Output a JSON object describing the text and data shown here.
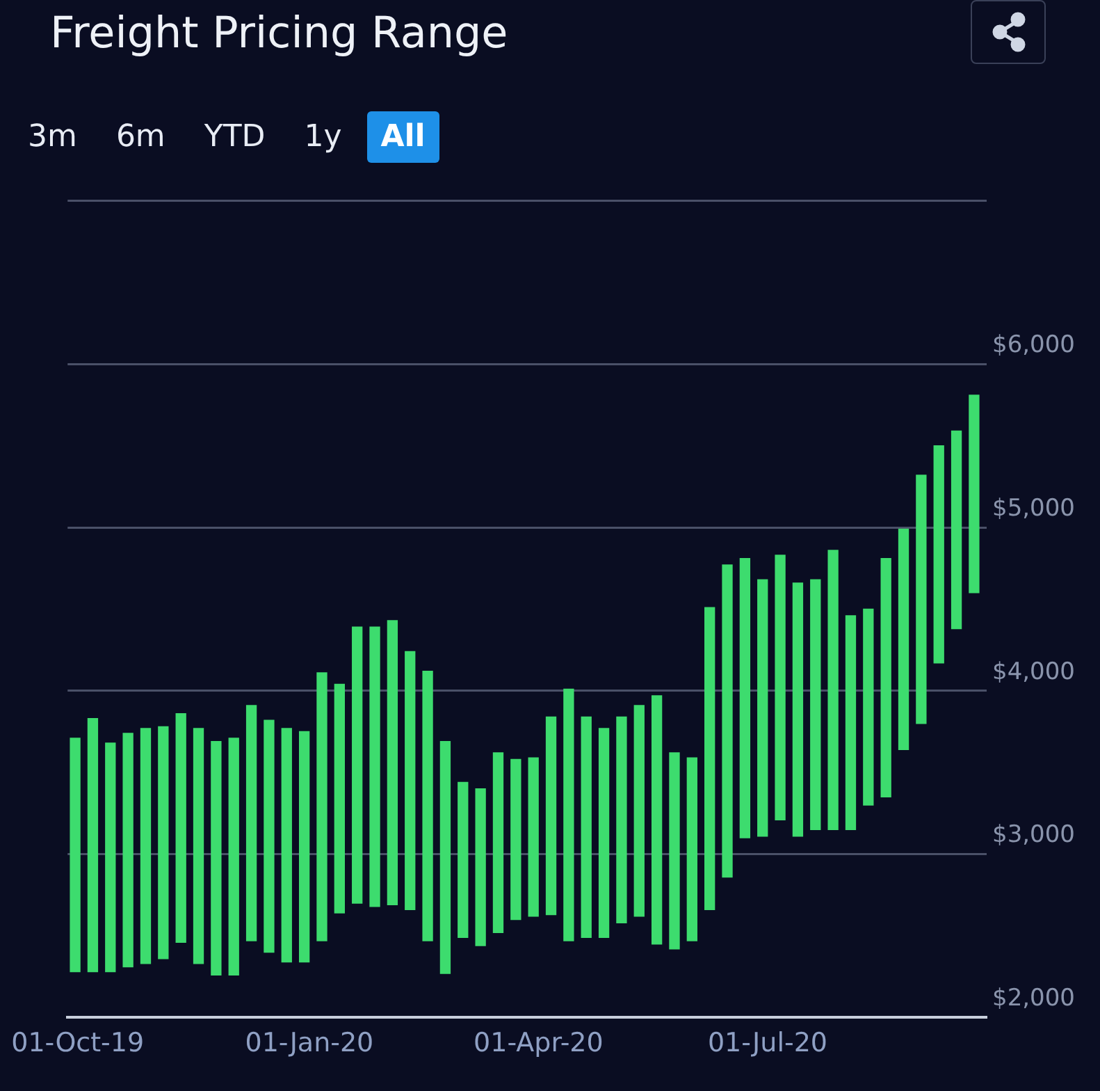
{
  "chart_data": {
    "type": "bar",
    "title": "Freight Pricing Range",
    "annotations": [
      "3m",
      "6m",
      "YTD",
      "1y",
      "All"
    ],
    "x": [
      "2019-09-30",
      "2019-10-07",
      "2019-10-14",
      "2019-10-21",
      "2019-10-28",
      "2019-11-04",
      "2019-11-11",
      "2019-11-18",
      "2019-11-25",
      "2019-12-02",
      "2019-12-09",
      "2019-12-16",
      "2019-12-23",
      "2019-12-30",
      "2020-01-06",
      "2020-01-13",
      "2020-01-20",
      "2020-01-27",
      "2020-02-03",
      "2020-02-10",
      "2020-02-17",
      "2020-02-24",
      "2020-03-02",
      "2020-03-09",
      "2020-03-16",
      "2020-03-23",
      "2020-03-30",
      "2020-04-06",
      "2020-04-13",
      "2020-04-20",
      "2020-04-27",
      "2020-05-04",
      "2020-05-11",
      "2020-05-18",
      "2020-05-25",
      "2020-06-01",
      "2020-06-08",
      "2020-06-15",
      "2020-06-22",
      "2020-06-29",
      "2020-07-06",
      "2020-07-13",
      "2020-07-20",
      "2020-07-27",
      "2020-08-03",
      "2020-08-10",
      "2020-08-17",
      "2020-08-24",
      "2020-08-31",
      "2020-09-07",
      "2020-09-14",
      "2020-09-21"
    ],
    "base": [
      2280,
      2280,
      2280,
      2310,
      2330,
      2360,
      2460,
      2330,
      2260,
      2260,
      2470,
      2400,
      2340,
      2340,
      2470,
      2640,
      2700,
      2680,
      2690,
      2660,
      2470,
      2270,
      2490,
      2440,
      2520,
      2600,
      2620,
      2630,
      2470,
      2490,
      2490,
      2580,
      2620,
      2450,
      2420,
      2470,
      2660,
      2860,
      3100,
      3110,
      3210,
      3110,
      3150,
      3150,
      3150,
      3300,
      3350,
      3640,
      3800,
      4170,
      4380,
      4600
    ],
    "values": [
      1430,
      1550,
      1400,
      1430,
      1440,
      1420,
      1400,
      1440,
      1430,
      1450,
      1440,
      1420,
      1430,
      1410,
      1640,
      1400,
      1690,
      1710,
      1740,
      1580,
      1650,
      1420,
      950,
      960,
      1100,
      980,
      970,
      1210,
      1540,
      1350,
      1280,
      1260,
      1290,
      1520,
      1200,
      1120,
      1850,
      1910,
      1710,
      1570,
      1620,
      1550,
      1530,
      1710,
      1310,
      1200,
      1460,
      1350,
      1520,
      1330,
      1210,
      1210
    ],
    "color": "#3ddc6e",
    "xlim": [
      "2019-09-27",
      "2020-09-26"
    ],
    "xticks": [
      {
        "value": "2019-10-01",
        "label": "01-Oct-19"
      },
      {
        "value": "2020-01-01",
        "label": "01-Jan-20"
      },
      {
        "value": "2020-04-01",
        "label": "01-Apr-20"
      },
      {
        "value": "2020-07-01",
        "label": "01-Jul-20"
      }
    ],
    "ylim": [
      2000,
      7000
    ],
    "yticks": [
      {
        "value": 2000,
        "label": "$2,000"
      },
      {
        "value": 3000,
        "label": "$3,000"
      },
      {
        "value": 4000,
        "label": "$4,000"
      },
      {
        "value": 5000,
        "label": "$5,000"
      },
      {
        "value": 6000,
        "label": "$6,000"
      },
      {
        "value": 7000,
        "label": null
      }
    ],
    "grid": "y",
    "legend": false
  }
}
